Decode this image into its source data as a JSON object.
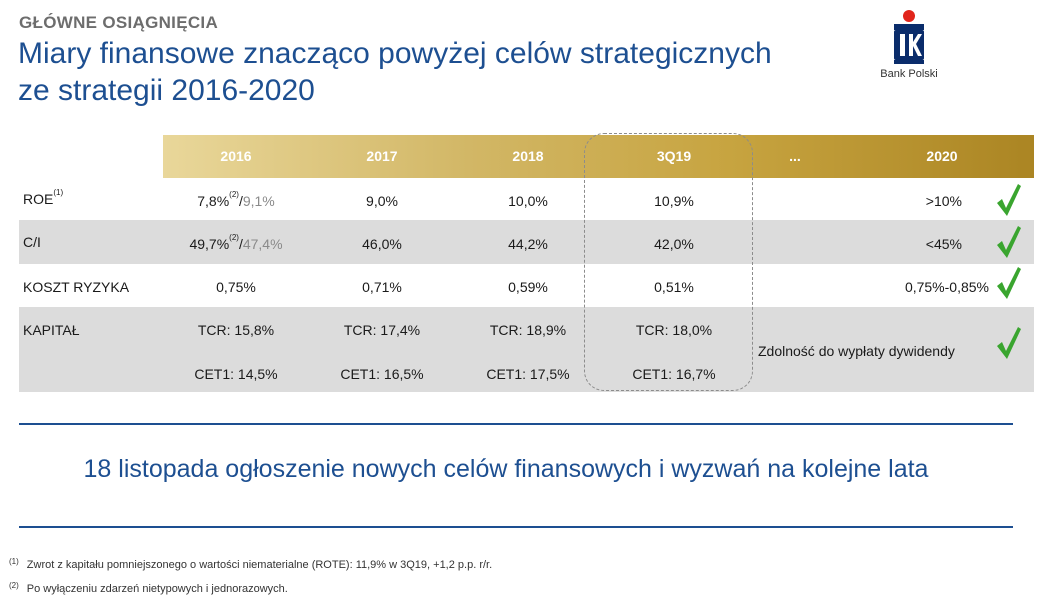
{
  "header": {
    "eyebrow": "GŁÓWNE OSIĄGNIĘCIA",
    "title_line1": "Miary finansowe znacząco powyżej celów strategicznych",
    "title_line2": "ze strategii 2016-2020",
    "logo_caption": "Bank Polski"
  },
  "table": {
    "columns": [
      "2016",
      "2017",
      "2018",
      "3Q19",
      "...",
      "2020"
    ],
    "rows": [
      {
        "label": "ROE",
        "label_note": "(1)",
        "y2016_main": "7,8%",
        "y2016_note": "(2)",
        "y2016_sep": "/",
        "y2016_alt": "9,1%",
        "y2017": "9,0%",
        "y2018": "10,0%",
        "q3_2019": "10,9%",
        "target_2020": ">10%",
        "met": true
      },
      {
        "label": "C/I",
        "y2016_main": "49,7%",
        "y2016_note": "(2)",
        "y2016_sep": "/",
        "y2016_alt": "47,4%",
        "y2017": "46,0%",
        "y2018": "44,2%",
        "q3_2019": "42,0%",
        "target_2020": "<45%",
        "met": true
      },
      {
        "label": "KOSZT RYZYKA",
        "y2016": "0,75%",
        "y2017": "0,71%",
        "y2018": "0,59%",
        "q3_2019": "0,51%",
        "target_2020": "0,75%-0,85%",
        "met": true
      },
      {
        "label": "KAPITAŁ",
        "tcr": [
          "TCR: 15,8%",
          "TCR: 17,4%",
          "TCR: 18,9%",
          "TCR: 18,0%"
        ],
        "cet1": [
          "CET1: 14,5%",
          "CET1: 16,5%",
          "CET1: 17,5%",
          "CET1: 16,7%"
        ],
        "target_2020": "Zdolność do wypłaty dywidendy",
        "met": true
      }
    ]
  },
  "announcement": "18 listopada ogłoszenie nowych celów finansowych i wyzwań na kolejne lata",
  "footnotes": [
    {
      "num": "(1)",
      "text": "Zwrot z kapitału pomniejszonego o wartości niematerialne (ROTE): 11,9% w 3Q19, +1,2 p.p. r/r."
    },
    {
      "num": "(2)",
      "text": "Po wyłączeniu zdarzeń nietypowych i jednorazowych."
    }
  ],
  "colors": {
    "brand_blue": "#1d4f91",
    "gold_light": "#e9d79a",
    "gold_dark": "#ab8523",
    "check_green": "#3aa52f",
    "row_shade": "#dcdcdc"
  },
  "icons": {
    "checkmark": "check-icon",
    "logo": "pko-logo-icon"
  }
}
